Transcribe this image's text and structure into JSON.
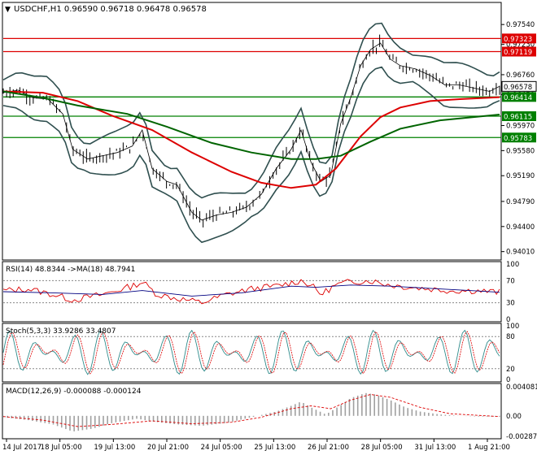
{
  "chart_data": {
    "type": "line",
    "symbol_header": "USDCHF,H1  0.96590 0.96718 0.96478 0.96578",
    "title": "USDCHF,H1",
    "timeframe": "H1",
    "ohlc": {
      "open": 0.9659,
      "high": 0.96718,
      "low": 0.96478,
      "close": 0.96578
    },
    "price_axis": {
      "ylim": [
        0.9393,
        0.9782
      ],
      "ticks": [
        "0.97540",
        "0.97230",
        "0.96760",
        "0.96450",
        "0.95970",
        "0.95580",
        "0.95190",
        "0.94790",
        "0.94400",
        "0.94010"
      ]
    },
    "x_labels": [
      "14 Jul 2017",
      "18 Jul 05:00",
      "19 Jul 13:00",
      "20 Jul 21:00",
      "24 Jul 05:00",
      "25 Jul 13:00",
      "26 Jul 21:00",
      "28 Jul 05:00",
      "31 Jul 13:00",
      "1 Aug 21:00"
    ],
    "levels": [
      {
        "value": 0.97323,
        "label": "0.97323",
        "color": "#dd0000"
      },
      {
        "value": 0.97119,
        "label": "0.97119",
        "color": "#dd0000"
      },
      {
        "value": 0.96414,
        "label": "0.96414",
        "color": "#008000"
      },
      {
        "value": 0.96115,
        "label": "0.96115",
        "color": "#008000"
      },
      {
        "value": 0.95783,
        "label": "0.95783",
        "color": "#008000"
      }
    ],
    "current_price": {
      "value": 0.96578,
      "label": "0.96578"
    },
    "red_ma_label": {
      "value": 0.96414,
      "label": "0.96414"
    },
    "price_path": [
      [
        0,
        0.9648
      ],
      [
        0.03,
        0.9652
      ],
      [
        0.06,
        0.964
      ],
      [
        0.09,
        0.9638
      ],
      [
        0.12,
        0.9615
      ],
      [
        0.14,
        0.956
      ],
      [
        0.17,
        0.9545
      ],
      [
        0.2,
        0.955
      ],
      [
        0.23,
        0.9555
      ],
      [
        0.26,
        0.9565
      ],
      [
        0.28,
        0.959
      ],
      [
        0.3,
        0.953
      ],
      [
        0.33,
        0.951
      ],
      [
        0.35,
        0.9505
      ],
      [
        0.38,
        0.9462
      ],
      [
        0.4,
        0.945
      ],
      [
        0.43,
        0.9458
      ],
      [
        0.46,
        0.9462
      ],
      [
        0.49,
        0.947
      ],
      [
        0.52,
        0.949
      ],
      [
        0.55,
        0.953
      ],
      [
        0.58,
        0.956
      ],
      [
        0.6,
        0.959
      ],
      [
        0.62,
        0.954
      ],
      [
        0.64,
        0.951
      ],
      [
        0.66,
        0.952
      ],
      [
        0.68,
        0.96
      ],
      [
        0.7,
        0.964
      ],
      [
        0.72,
        0.969
      ],
      [
        0.74,
        0.9715
      ],
      [
        0.76,
        0.9725
      ],
      [
        0.78,
        0.97
      ],
      [
        0.8,
        0.969
      ],
      [
        0.83,
        0.9685
      ],
      [
        0.86,
        0.9675
      ],
      [
        0.89,
        0.966
      ],
      [
        0.92,
        0.966
      ],
      [
        0.95,
        0.9655
      ],
      [
        0.98,
        0.965
      ],
      [
        1.0,
        0.9658
      ]
    ],
    "red_ma": [
      [
        0,
        0.965
      ],
      [
        0.08,
        0.9648
      ],
      [
        0.15,
        0.9635
      ],
      [
        0.22,
        0.9612
      ],
      [
        0.3,
        0.959
      ],
      [
        0.38,
        0.9555
      ],
      [
        0.46,
        0.9525
      ],
      [
        0.52,
        0.9508
      ],
      [
        0.58,
        0.95
      ],
      [
        0.63,
        0.9505
      ],
      [
        0.67,
        0.953
      ],
      [
        0.72,
        0.958
      ],
      [
        0.76,
        0.961
      ],
      [
        0.8,
        0.9625
      ],
      [
        0.86,
        0.9635
      ],
      [
        0.92,
        0.9638
      ],
      [
        1.0,
        0.9641
      ]
    ],
    "green_ma": [
      [
        0,
        0.965
      ],
      [
        0.08,
        0.964
      ],
      [
        0.15,
        0.9628
      ],
      [
        0.25,
        0.9615
      ],
      [
        0.33,
        0.9595
      ],
      [
        0.42,
        0.957
      ],
      [
        0.5,
        0.9555
      ],
      [
        0.58,
        0.9545
      ],
      [
        0.63,
        0.9545
      ],
      [
        0.68,
        0.955
      ],
      [
        0.74,
        0.9572
      ],
      [
        0.8,
        0.9592
      ],
      [
        0.88,
        0.9605
      ],
      [
        1.0,
        0.9614
      ]
    ],
    "rsi": {
      "label": "RSI(14) 48.8344  ->MA(18) 48.7941",
      "ticks": [
        "100",
        "70",
        "30",
        "0"
      ],
      "levels": [
        70,
        30
      ],
      "values": [
        [
          0,
          52
        ],
        [
          0.05,
          55
        ],
        [
          0.1,
          45
        ],
        [
          0.14,
          35
        ],
        [
          0.2,
          45
        ],
        [
          0.26,
          60
        ],
        [
          0.28,
          68
        ],
        [
          0.31,
          45
        ],
        [
          0.35,
          38
        ],
        [
          0.4,
          30
        ],
        [
          0.45,
          45
        ],
        [
          0.5,
          55
        ],
        [
          0.55,
          60
        ],
        [
          0.6,
          70
        ],
        [
          0.62,
          62
        ],
        [
          0.64,
          45
        ],
        [
          0.67,
          62
        ],
        [
          0.7,
          68
        ],
        [
          0.74,
          70
        ],
        [
          0.78,
          62
        ],
        [
          0.82,
          58
        ],
        [
          0.86,
          55
        ],
        [
          0.9,
          52
        ],
        [
          0.95,
          52
        ],
        [
          1.0,
          49
        ]
      ],
      "ma": [
        [
          0,
          50
        ],
        [
          0.1,
          48
        ],
        [
          0.2,
          45
        ],
        [
          0.28,
          52
        ],
        [
          0.38,
          42
        ],
        [
          0.48,
          48
        ],
        [
          0.58,
          60
        ],
        [
          0.63,
          58
        ],
        [
          0.7,
          62
        ],
        [
          0.78,
          60
        ],
        [
          0.86,
          56
        ],
        [
          0.94,
          52
        ],
        [
          1.0,
          49
        ]
      ]
    },
    "stoch": {
      "label": "Stoch(5,3,3) 33.9286 33.4807",
      "ticks": [
        "100",
        "80",
        "20",
        "0"
      ],
      "levels": [
        80,
        20
      ]
    },
    "macd": {
      "label": "MACD(12,26,9) -0.000088 -0.000124",
      "ticks": [
        "0.004081",
        "0.00",
        "-0.00287"
      ],
      "hist": [
        [
          0,
          -0.0002
        ],
        [
          0.05,
          -0.0006
        ],
        [
          0.1,
          -0.0012
        ],
        [
          0.14,
          -0.0022
        ],
        [
          0.18,
          -0.0018
        ],
        [
          0.22,
          -0.001
        ],
        [
          0.27,
          -0.0004
        ],
        [
          0.3,
          -0.0008
        ],
        [
          0.35,
          -0.0012
        ],
        [
          0.4,
          -0.0014
        ],
        [
          0.45,
          -0.001
        ],
        [
          0.5,
          -0.0002
        ],
        [
          0.55,
          0.0006
        ],
        [
          0.58,
          0.0014
        ],
        [
          0.6,
          0.002
        ],
        [
          0.62,
          0.0012
        ],
        [
          0.65,
          0.0002
        ],
        [
          0.68,
          0.0015
        ],
        [
          0.7,
          0.0025
        ],
        [
          0.73,
          0.0032
        ],
        [
          0.75,
          0.003
        ],
        [
          0.78,
          0.0022
        ],
        [
          0.81,
          0.0012
        ],
        [
          0.84,
          0.0006
        ],
        [
          0.88,
          0.0002
        ],
        [
          0.92,
          0.0
        ],
        [
          0.96,
          -0.0001
        ],
        [
          1.0,
          -0.0001
        ]
      ],
      "signal": [
        [
          0,
          -0.0001
        ],
        [
          0.08,
          -0.0006
        ],
        [
          0.15,
          -0.0015
        ],
        [
          0.22,
          -0.0012
        ],
        [
          0.3,
          -0.0007
        ],
        [
          0.38,
          -0.0011
        ],
        [
          0.46,
          -0.0009
        ],
        [
          0.52,
          -0.0002
        ],
        [
          0.58,
          0.001
        ],
        [
          0.62,
          0.0014
        ],
        [
          0.66,
          0.001
        ],
        [
          0.7,
          0.0022
        ],
        [
          0.74,
          0.003
        ],
        [
          0.78,
          0.0026
        ],
        [
          0.84,
          0.0012
        ],
        [
          0.9,
          0.0003
        ],
        [
          1.0,
          -0.0001
        ]
      ]
    }
  }
}
